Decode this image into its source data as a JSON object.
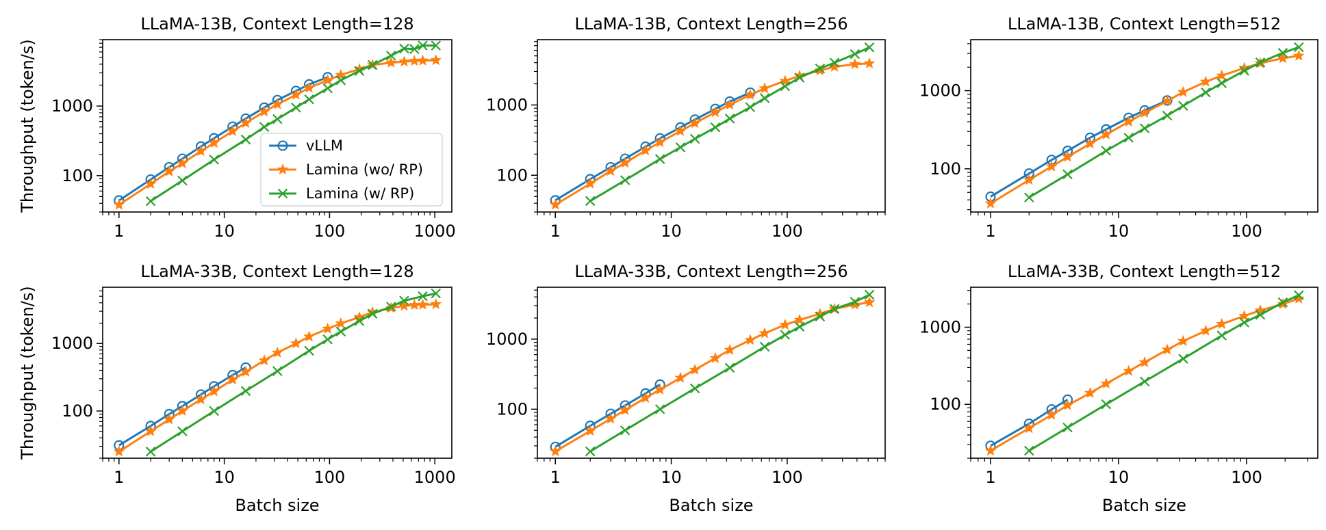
{
  "colors": {
    "vllm": "#1f77b4",
    "lamina_wo": "#ff7f0e",
    "lamina_w": "#2ca02c"
  },
  "legend": [
    {
      "key": "vllm",
      "label": "vLLM",
      "marker": "circle"
    },
    {
      "key": "lamina_wo",
      "label": "Lamina (wo/ RP)",
      "marker": "star"
    },
    {
      "key": "lamina_w",
      "label": "Lamina (w/ RP)",
      "marker": "x"
    }
  ],
  "shared": {
    "ylabel": "Throughput (token/s)",
    "xlabel": "Batch size",
    "xscale": "log",
    "yscale": "log"
  },
  "chart_data": [
    {
      "type": "line",
      "title": "LLaMA-13B, Context Length=128",
      "xlabel": "",
      "ylabel": "Throughput (token/s)",
      "xlim": [
        0.7,
        1450
      ],
      "ylim": [
        30,
        9000
      ],
      "xticks": [
        1,
        10,
        100,
        1000
      ],
      "xticklabels": [
        "1",
        "10",
        "100",
        "1000"
      ],
      "yticks": [
        100,
        1000
      ],
      "yticklabels": [
        "100",
        "1000"
      ],
      "legend_position": "lower-right",
      "series": [
        {
          "name": "vLLM",
          "key": "vllm",
          "x": [
            1,
            2,
            3,
            4,
            6,
            8,
            12,
            16,
            24,
            32,
            48,
            64,
            96
          ],
          "y": [
            44,
            88,
            132,
            175,
            262,
            345,
            505,
            660,
            950,
            1220,
            1650,
            2050,
            2600
          ]
        },
        {
          "name": "Lamina (wo/ RP)",
          "key": "lamina_wo",
          "x": [
            1,
            2,
            3,
            4,
            6,
            8,
            12,
            16,
            24,
            32,
            48,
            64,
            96,
            128,
            192,
            256,
            384,
            512,
            640,
            768,
            1024
          ],
          "y": [
            38,
            76,
            115,
            150,
            225,
            295,
            435,
            570,
            830,
            1060,
            1450,
            1830,
            2350,
            2800,
            3400,
            3900,
            4200,
            4350,
            4450,
            4500,
            4550
          ]
        },
        {
          "name": "Lamina (w/ RP)",
          "key": "lamina_w",
          "x": [
            2,
            4,
            8,
            16,
            24,
            32,
            48,
            64,
            96,
            128,
            192,
            256,
            384,
            512,
            640,
            768,
            1024
          ],
          "y": [
            43,
            85,
            170,
            330,
            500,
            650,
            950,
            1250,
            1800,
            2350,
            3200,
            3900,
            5300,
            6700,
            6600,
            7400,
            7400
          ]
        }
      ]
    },
    {
      "type": "line",
      "title": "LLaMA-13B, Context Length=256",
      "xlabel": "",
      "ylabel": "",
      "xlim": [
        0.7,
        700
      ],
      "ylim": [
        30,
        8500
      ],
      "xticks": [
        1,
        10,
        100
      ],
      "xticklabels": [
        "1",
        "10",
        "100"
      ],
      "yticks": [
        100,
        1000
      ],
      "yticklabels": [
        "100",
        "1000"
      ],
      "series": [
        {
          "name": "vLLM",
          "key": "vllm",
          "x": [
            1,
            2,
            3,
            4,
            6,
            8,
            12,
            16,
            24,
            32,
            48
          ],
          "y": [
            44,
            88,
            130,
            172,
            255,
            335,
            480,
            620,
            880,
            1120,
            1500
          ]
        },
        {
          "name": "Lamina (wo/ RP)",
          "key": "lamina_wo",
          "x": [
            1,
            2,
            3,
            4,
            6,
            8,
            12,
            16,
            24,
            32,
            48,
            64,
            96,
            128,
            192,
            256,
            384,
            512
          ],
          "y": [
            38,
            76,
            115,
            150,
            225,
            295,
            425,
            550,
            790,
            1010,
            1390,
            1720,
            2200,
            2600,
            3100,
            3500,
            3800,
            3900
          ]
        },
        {
          "name": "Lamina (w/ RP)",
          "key": "lamina_w",
          "x": [
            2,
            4,
            8,
            12,
            16,
            24,
            32,
            48,
            64,
            96,
            128,
            192,
            256,
            384,
            512
          ],
          "y": [
            43,
            85,
            170,
            250,
            330,
            480,
            640,
            930,
            1250,
            1850,
            2450,
            3300,
            4000,
            5300,
            6600
          ]
        }
      ]
    },
    {
      "type": "line",
      "title": "LLaMA-13B, Context Length=512",
      "xlabel": "",
      "ylabel": "",
      "xlim": [
        0.7,
        360
      ],
      "ylim": [
        28,
        4500
      ],
      "xticks": [
        1,
        10,
        100
      ],
      "xticklabels": [
        "1",
        "10",
        "100"
      ],
      "yticks": [
        100,
        1000
      ],
      "yticklabels": [
        "100",
        "1000"
      ],
      "series": [
        {
          "name": "vLLM",
          "key": "vllm",
          "x": [
            1,
            2,
            3,
            4,
            6,
            8,
            12,
            16,
            24
          ],
          "y": [
            44,
            87,
            130,
            170,
            250,
            320,
            450,
            560,
            750
          ]
        },
        {
          "name": "Lamina (wo/ RP)",
          "key": "lamina_wo",
          "x": [
            1,
            2,
            3,
            4,
            6,
            8,
            12,
            16,
            24,
            32,
            48,
            64,
            96,
            128,
            192,
            256
          ],
          "y": [
            36,
            72,
            107,
            142,
            210,
            275,
            400,
            520,
            740,
            960,
            1300,
            1560,
            1950,
            2250,
            2600,
            2800
          ]
        },
        {
          "name": "Lamina (w/ RP)",
          "key": "lamina_w",
          "x": [
            2,
            4,
            8,
            12,
            16,
            24,
            32,
            48,
            64,
            96,
            128,
            192,
            256
          ],
          "y": [
            43,
            85,
            170,
            250,
            330,
            480,
            640,
            950,
            1250,
            1800,
            2300,
            3050,
            3600
          ]
        }
      ]
    },
    {
      "type": "line",
      "title": "LLaMA-33B, Context Length=128",
      "xlabel": "Batch size",
      "ylabel": "Throughput (token/s)",
      "xlim": [
        0.7,
        1450
      ],
      "ylim": [
        20,
        6800
      ],
      "xticks": [
        1,
        10,
        100,
        1000
      ],
      "xticklabels": [
        "1",
        "10",
        "100",
        "1000"
      ],
      "yticks": [
        100,
        1000
      ],
      "yticklabels": [
        "100",
        "1000"
      ],
      "series": [
        {
          "name": "vLLM",
          "key": "vllm",
          "x": [
            1,
            2,
            3,
            4,
            6,
            8,
            12,
            16
          ],
          "y": [
            31,
            60,
            90,
            118,
            175,
            232,
            340,
            440
          ]
        },
        {
          "name": "Lamina (wo/ RP)",
          "key": "lamina_wo",
          "x": [
            1,
            2,
            3,
            4,
            6,
            8,
            12,
            16,
            24,
            32,
            48,
            64,
            96,
            128,
            192,
            256,
            384,
            512,
            640,
            768,
            1024
          ],
          "y": [
            25,
            50,
            75,
            100,
            148,
            195,
            290,
            380,
            560,
            730,
            1000,
            1260,
            1650,
            1980,
            2450,
            2900,
            3350,
            3600,
            3700,
            3750,
            3800
          ]
        },
        {
          "name": "Lamina (w/ RP)",
          "key": "lamina_w",
          "x": [
            2,
            4,
            8,
            16,
            32,
            64,
            96,
            128,
            192,
            256,
            384,
            512,
            768,
            1024
          ],
          "y": [
            25,
            50,
            100,
            198,
            390,
            780,
            1150,
            1500,
            2150,
            2750,
            3500,
            4300,
            5000,
            5500
          ]
        }
      ]
    },
    {
      "type": "line",
      "title": "LLaMA-33B, Context Length=256",
      "xlabel": "Batch size",
      "ylabel": "",
      "xlim": [
        0.7,
        700
      ],
      "ylim": [
        20,
        5500
      ],
      "xticks": [
        1,
        10,
        100
      ],
      "xticklabels": [
        "1",
        "10",
        "100"
      ],
      "yticks": [
        100,
        1000
      ],
      "yticklabels": [
        "100",
        "1000"
      ],
      "series": [
        {
          "name": "vLLM",
          "key": "vllm",
          "x": [
            1,
            2,
            3,
            4,
            6,
            8
          ],
          "y": [
            29,
            58,
            86,
            113,
            168,
            225
          ]
        },
        {
          "name": "Lamina (wo/ RP)",
          "key": "lamina_wo",
          "x": [
            1,
            2,
            3,
            4,
            6,
            8,
            12,
            16,
            24,
            32,
            48,
            64,
            96,
            128,
            192,
            256,
            384,
            512
          ],
          "y": [
            25,
            49,
            73,
            97,
            145,
            190,
            280,
            365,
            535,
            700,
            970,
            1210,
            1600,
            1880,
            2300,
            2700,
            3100,
            3350
          ]
        },
        {
          "name": "Lamina (w/ RP)",
          "key": "lamina_w",
          "x": [
            2,
            4,
            8,
            16,
            32,
            64,
            96,
            128,
            192,
            256,
            384,
            512
          ],
          "y": [
            25,
            50,
            100,
            198,
            390,
            780,
            1150,
            1500,
            2100,
            2700,
            3400,
            4300
          ]
        }
      ]
    },
    {
      "type": "line",
      "title": "LLaMA-33B, Context Length=512",
      "xlabel": "Batch size",
      "ylabel": "",
      "xlim": [
        0.7,
        360
      ],
      "ylim": [
        20,
        3300
      ],
      "xticks": [
        1,
        10,
        100
      ],
      "xticklabels": [
        "1",
        "10",
        "100"
      ],
      "yticks": [
        100,
        1000
      ],
      "yticklabels": [
        "100",
        "1000"
      ],
      "series": [
        {
          "name": "vLLM",
          "key": "vllm",
          "x": [
            1,
            2,
            3,
            4
          ],
          "y": [
            29,
            56,
            86,
            115
          ]
        },
        {
          "name": "Lamina (wo/ RP)",
          "key": "lamina_wo",
          "x": [
            1,
            2,
            3,
            4,
            6,
            8,
            12,
            16,
            24,
            32,
            48,
            64,
            96,
            128,
            192,
            256
          ],
          "y": [
            25,
            49,
            73,
            97,
            140,
            185,
            270,
            350,
            510,
            660,
            900,
            1100,
            1400,
            1650,
            2000,
            2350
          ]
        },
        {
          "name": "Lamina (w/ RP)",
          "key": "lamina_w",
          "x": [
            2,
            4,
            8,
            16,
            32,
            64,
            96,
            128,
            192,
            256
          ],
          "y": [
            25,
            50,
            100,
            198,
            390,
            780,
            1150,
            1450,
            2100,
            2600
          ]
        }
      ]
    }
  ]
}
